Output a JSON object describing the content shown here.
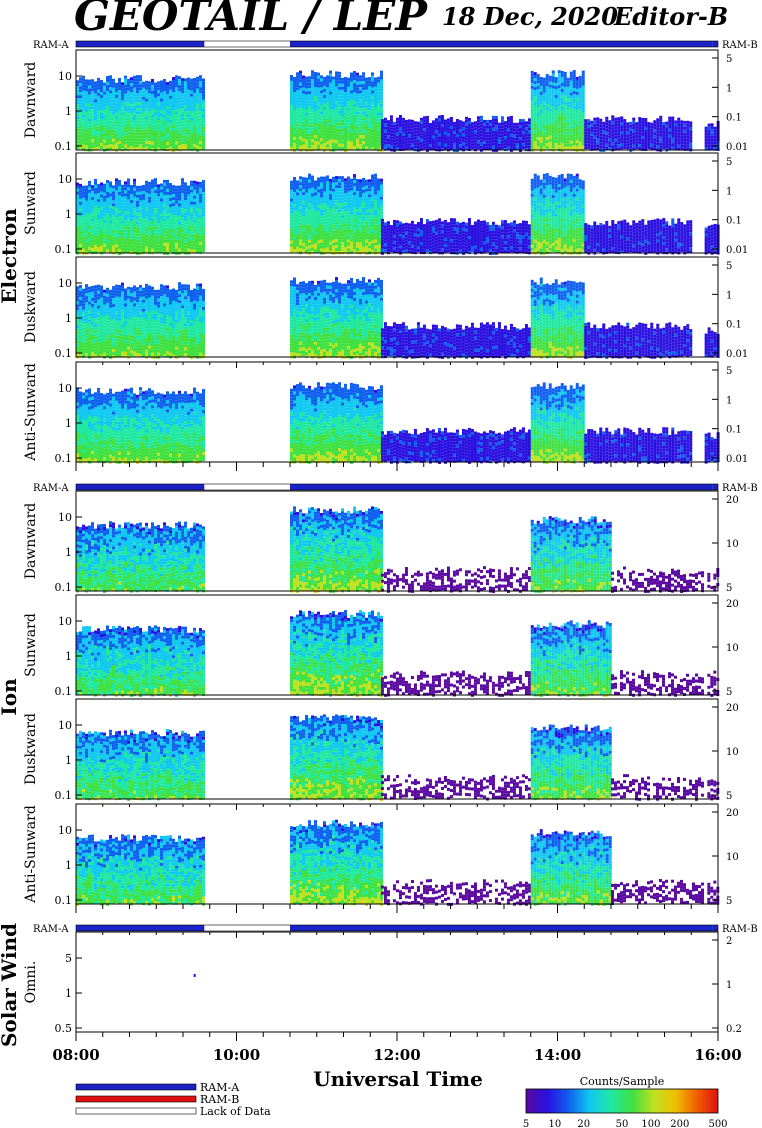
{
  "header": {
    "title": "GEOTAIL / LEP",
    "date": "18 Dec, 2020",
    "editor": "Editor-B"
  },
  "colors": {
    "ram_a": "#1a22c8",
    "ram_b": "#e01010",
    "lack": "#ffffff",
    "colorbar": [
      "#5a0aa0",
      "#2a10e0",
      "#1060f0",
      "#10c8f0",
      "#20e8a0",
      "#40e040",
      "#c0e020",
      "#f0c000",
      "#f06000",
      "#e01010"
    ]
  },
  "chart_data": {
    "type": "heatmap",
    "time_axis": {
      "label": "Universal Time",
      "range": [
        "08:00",
        "16:00"
      ],
      "tick_labels": [
        "08:00",
        "10:00",
        "12:00",
        "14:00",
        "16:00"
      ]
    },
    "ram_status_labels": {
      "left": "RAM-A",
      "right": "RAM-B"
    },
    "ram_status": [
      {
        "from": "08:00",
        "to": "09:36",
        "state": "RAM-A"
      },
      {
        "from": "09:36",
        "to": "10:40",
        "state": "Lack of Data"
      },
      {
        "from": "10:40",
        "to": "15:56",
        "state": "RAM-A"
      },
      {
        "from": "15:56",
        "to": "16:00",
        "state": "RAM-A"
      }
    ],
    "sections": [
      {
        "name": "Electron",
        "panels": [
          {
            "label": "Dawnward",
            "left_ticks": [
              "10",
              "1",
              "0.1"
            ],
            "right_ticks": [
              "5",
              "1",
              "0.1",
              "0.01"
            ]
          },
          {
            "label": "Sunward",
            "left_ticks": [
              "10",
              "1",
              "0.1"
            ],
            "right_ticks": [
              "5",
              "1",
              "0.1",
              "0.01"
            ]
          },
          {
            "label": "Duskward",
            "left_ticks": [
              "10",
              "1",
              "0.1"
            ],
            "right_ticks": [
              "5",
              "1",
              "0.1",
              "0.01"
            ]
          },
          {
            "label": "Anti-Sunward",
            "left_ticks": [
              "10",
              "1",
              "0.1"
            ],
            "right_ticks": [
              "5",
              "1",
              "0.1",
              "0.01"
            ]
          }
        ]
      },
      {
        "name": "Ion",
        "panels": [
          {
            "label": "Dawnward",
            "left_ticks": [
              "10",
              "1",
              "0.1"
            ],
            "right_ticks": [
              "20",
              "10",
              "5"
            ]
          },
          {
            "label": "Sunward",
            "left_ticks": [
              "10",
              "1",
              "0.1"
            ],
            "right_ticks": [
              "20",
              "10",
              "5"
            ]
          },
          {
            "label": "Duskward",
            "left_ticks": [
              "10",
              "1",
              "0.1"
            ],
            "right_ticks": [
              "20",
              "10",
              "5"
            ]
          },
          {
            "label": "Anti-Sunward",
            "left_ticks": [
              "10",
              "1",
              "0.1"
            ],
            "right_ticks": [
              "20",
              "10",
              "5"
            ]
          }
        ]
      },
      {
        "name": "Solar Wind",
        "panels": [
          {
            "label": "Omni.",
            "left_ticks": [
              "5",
              "1",
              "0.5"
            ],
            "right_ticks": [
              "2",
              "1",
              "0.2"
            ]
          }
        ]
      }
    ],
    "legend": {
      "ram_a": "RAM-A",
      "ram_b": "RAM-B",
      "lack": "Lack of Data"
    },
    "colorbar": {
      "title": "Counts/Sample",
      "ticks": [
        "5",
        "10",
        "20",
        "50",
        "100",
        "200",
        "500"
      ]
    },
    "data_intervals": {
      "electron": [
        [
          "08:00",
          "09:36",
          0.75
        ],
        [
          "10:40",
          "11:48",
          0.8
        ],
        [
          "11:48",
          "13:40",
          0.35
        ],
        [
          "13:40",
          "14:20",
          0.8
        ],
        [
          "14:20",
          "15:40",
          0.35
        ],
        [
          "15:50",
          "16:00",
          0.3
        ]
      ],
      "ion": [
        [
          "08:00",
          "09:36",
          0.7
        ],
        [
          "10:40",
          "11:48",
          0.85
        ],
        [
          "11:48",
          "13:40",
          0.25
        ],
        [
          "13:40",
          "14:40",
          0.75
        ],
        [
          "14:40",
          "15:48",
          0.25
        ],
        [
          "15:52",
          "16:00",
          0.25
        ]
      ]
    }
  }
}
